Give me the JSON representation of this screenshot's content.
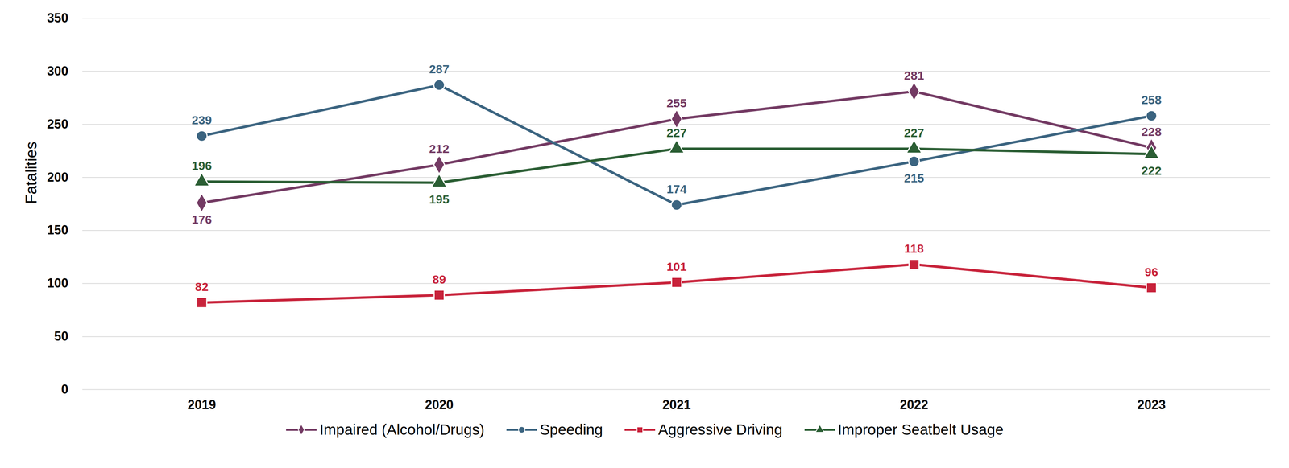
{
  "chart_data": {
    "type": "line",
    "y_label": "Fatalities",
    "categories": [
      "2019",
      "2020",
      "2021",
      "2022",
      "2023"
    ],
    "series": [
      {
        "name": "Impaired (Alcohol/Drugs)",
        "color": "#733a63",
        "marker": "diamond",
        "values": [
          176,
          212,
          255,
          281,
          228
        ]
      },
      {
        "name": "Speeding",
        "color": "#3b6480",
        "marker": "circle",
        "values": [
          239,
          287,
          174,
          215,
          258
        ]
      },
      {
        "name": "Aggressive Driving",
        "color": "#c8233b",
        "marker": "square",
        "values": [
          82,
          89,
          101,
          118,
          96
        ]
      },
      {
        "name": "Improper Seatbelt Usage",
        "color": "#2b5e34",
        "marker": "triangle",
        "values": [
          196,
          195,
          227,
          227,
          222
        ]
      }
    ],
    "ylim": [
      0,
      350
    ],
    "yticks": [
      0,
      50,
      100,
      150,
      200,
      250,
      300,
      350
    ],
    "grid": true,
    "legend": "bottom",
    "data_labels": true
  }
}
